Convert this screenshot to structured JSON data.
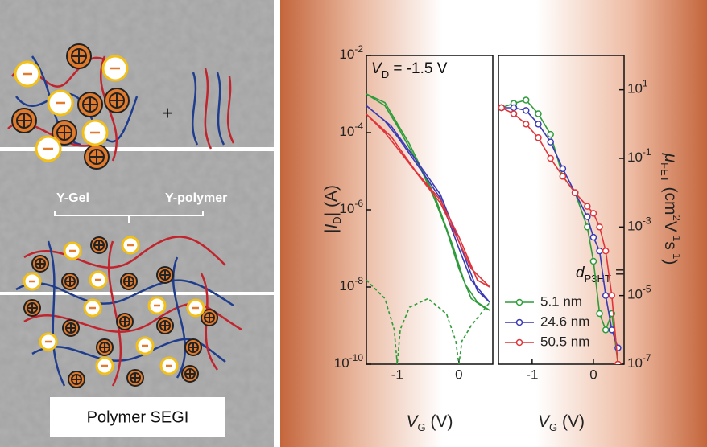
{
  "schematic": {
    "labels": [
      "Y-Gel",
      "Y-polymer"
    ],
    "caption": "Polymer SEGI"
  },
  "chart_data": [
    {
      "type": "line",
      "log_y": true,
      "xlabel": [
        "V",
        "G",
        " (V)"
      ],
      "ylabel": [
        "|",
        "I",
        "D",
        "| (A)"
      ],
      "annotation": [
        "V",
        "D",
        " = -1.5 V"
      ],
      "xlim": [
        -1.5,
        0.55
      ],
      "xticks": [
        -1,
        0
      ],
      "ylim": [
        1e-10,
        0.01
      ],
      "yticks": [
        {
          "value": 0.01,
          "label": "10",
          "exponent": "-2"
        },
        {
          "value": 0.0001,
          "label": "10",
          "exponent": "-4"
        },
        {
          "value": 1e-06,
          "label": "10",
          "exponent": "-6"
        },
        {
          "value": 1e-08,
          "label": "10",
          "exponent": "-8"
        },
        {
          "value": 1e-10,
          "label": "10",
          "exponent": "-10"
        }
      ],
      "series": [
        {
          "color": "#2e9c3a",
          "dashed": false,
          "x": [
            -1.5,
            -1.2,
            -1.0,
            -0.8,
            -0.6,
            -0.4,
            -0.2,
            0,
            0.2,
            0.4,
            0.5,
            0.3,
            0.1,
            -0.1,
            -0.4,
            -0.8,
            -1.2,
            -1.5
          ],
          "values": [
            0.001,
            0.0005,
            0.00015,
            4e-05,
            1e-05,
            2e-06,
            3e-07,
            3e-08,
            5e-09,
            3e-09,
            2.5e-09,
            4e-09,
            1.2e-08,
            1.2e-07,
            2.5e-06,
            5e-05,
            0.0006,
            0.001
          ]
        },
        {
          "color": "#3a3ab4",
          "dashed": false,
          "x": [
            -1.5,
            -1.2,
            -1.0,
            -0.6,
            -0.3,
            0,
            0.2,
            0.5,
            0.3,
            0.0,
            -0.3,
            -0.7,
            -1.1,
            -1.5
          ],
          "values": [
            0.0005,
            0.0002,
            8e-05,
            1e-05,
            2e-06,
            1e-07,
            1.5e-08,
            4e-09,
            8e-09,
            1.5e-07,
            2.5e-06,
            2e-05,
            0.00015,
            0.0005
          ]
        },
        {
          "color": "#e0343a",
          "dashed": false,
          "x": [
            -1.5,
            -1.2,
            -1.0,
            -0.6,
            -0.3,
            0,
            0.2,
            0.5,
            0.3,
            0.0,
            -0.3,
            -0.7,
            -1.1,
            -1.5
          ],
          "values": [
            0.0003,
            0.0001,
            4e-05,
            6e-06,
            1.5e-06,
            1.5e-07,
            3e-08,
            1e-08,
            1.5e-08,
            2e-07,
            1.8e-06,
            1e-05,
            8e-05,
            0.0003
          ]
        },
        {
          "color": "#2e9c3a",
          "dashed": true,
          "x": [
            -1.5,
            -1.2,
            -1.05,
            -1.0,
            -0.95,
            -0.8,
            -0.5,
            -0.2,
            -0.05,
            0,
            0.05,
            0.2,
            0.5
          ],
          "values": [
            1.5e-08,
            5e-09,
            8e-10,
            1e-10,
            8e-10,
            3e-09,
            5e-09,
            2e-09,
            4e-10,
            1e-10,
            4e-10,
            1e-09,
            4e-09
          ]
        }
      ]
    },
    {
      "type": "line",
      "log_y": true,
      "markers": "open-circle",
      "legend": "lower left",
      "xlabel": [
        "V",
        "G",
        " (V)"
      ],
      "ylabel": [
        "μ",
        "FET",
        " (cm",
        "2",
        "V",
        "-1",
        "s",
        "-1",
        ")"
      ],
      "annotation": [
        "d",
        "P3HT",
        " ="
      ],
      "xlim": [
        -1.55,
        0.5
      ],
      "xticks": [
        -1,
        0
      ],
      "ylim": [
        1e-07,
        100
      ],
      "yticks": [
        {
          "value": 10,
          "label": "10",
          "exponent": "1"
        },
        {
          "value": 0.1,
          "label": "10",
          "exponent": "-1"
        },
        {
          "value": 0.001,
          "label": "10",
          "exponent": "-3"
        },
        {
          "value": 1e-05,
          "label": "10",
          "exponent": "-5"
        },
        {
          "value": 1e-07,
          "label": "10",
          "exponent": "-7"
        }
      ],
      "series": [
        {
          "name": "5.1 nm",
          "color": "#2e9c3a",
          "x": [
            -1.5,
            -1.3,
            -1.1,
            -0.9,
            -0.7,
            -0.5,
            -0.3,
            -0.1,
            0,
            0.1,
            0.2,
            0.3,
            0.4
          ],
          "values": [
            3,
            4,
            5,
            2,
            0.5,
            0.03,
            0.01,
            0.001,
            0.0001,
            3e-06,
            1e-06,
            3e-06,
            1e-07
          ]
        },
        {
          "name": "24.6 nm",
          "color": "#3a3ab4",
          "x": [
            -1.5,
            -1.3,
            -1.1,
            -0.9,
            -0.7,
            -0.5,
            -0.3,
            -0.1,
            0,
            0.1,
            0.2,
            0.3,
            0.4
          ],
          "values": [
            3,
            3,
            2.5,
            1,
            0.3,
            0.05,
            0.01,
            0.002,
            0.0005,
            0.0002,
            1e-05,
            1e-06,
            3e-07
          ]
        },
        {
          "name": "50.5 nm",
          "color": "#e0343a",
          "x": [
            -1.5,
            -1.3,
            -1.1,
            -0.9,
            -0.7,
            -0.5,
            -0.3,
            -0.1,
            0,
            0.1,
            0.2,
            0.3,
            0.4
          ],
          "values": [
            3,
            2,
            1,
            0.4,
            0.1,
            0.03,
            0.01,
            0.004,
            0.0025,
            0.001,
            0.0002,
            1e-05,
            1e-07
          ]
        }
      ]
    }
  ]
}
